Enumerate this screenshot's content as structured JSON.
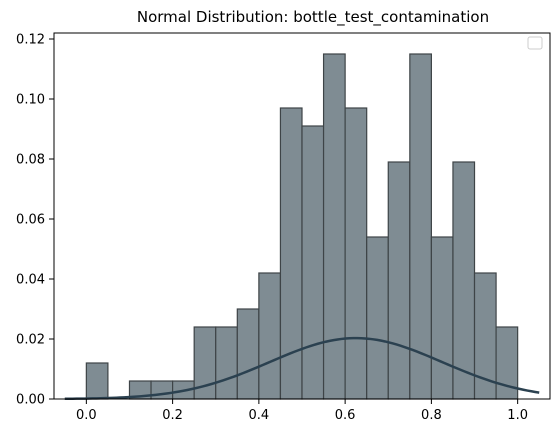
{
  "chart_data": {
    "type": "histogram",
    "title": "Normal Distribution: bottle_test_contamination",
    "xlabel": "",
    "ylabel": "",
    "xlim": [
      -0.075,
      1.075
    ],
    "ylim": [
      0,
      0.122
    ],
    "x_ticks": [
      0.0,
      0.2,
      0.4,
      0.6,
      0.8,
      1.0
    ],
    "x_tick_labels": [
      "0.0",
      "0.2",
      "0.4",
      "0.6",
      "0.8",
      "1.0"
    ],
    "y_ticks": [
      0.0,
      0.02,
      0.04,
      0.06,
      0.08,
      0.1,
      0.12
    ],
    "y_tick_labels": [
      "0.00",
      "0.02",
      "0.04",
      "0.06",
      "0.08",
      "0.10",
      "0.12"
    ],
    "bins": {
      "edges": [
        0.0,
        0.05,
        0.1,
        0.15,
        0.2,
        0.25,
        0.3,
        0.35,
        0.4,
        0.45,
        0.5,
        0.55,
        0.6,
        0.65,
        0.7,
        0.75,
        0.8,
        0.85,
        0.9,
        0.95,
        1.0
      ],
      "values": [
        0.012,
        0.0,
        0.006,
        0.006,
        0.006,
        0.024,
        0.024,
        0.03,
        0.042,
        0.097,
        0.091,
        0.115,
        0.097,
        0.054,
        0.079,
        0.115,
        0.054,
        0.079,
        0.042,
        0.024
      ]
    },
    "normal_curve": {
      "mean": 0.625,
      "sd": 0.2,
      "peak_value": 0.0203,
      "x_range": [
        -0.05,
        1.05
      ]
    },
    "grid": false,
    "legend": "top-right (empty)",
    "colors": {
      "bar_fill": "#7f8c93",
      "bar_edge": "#3e4447",
      "curve": "#2b4150",
      "axis": "#000000"
    }
  }
}
